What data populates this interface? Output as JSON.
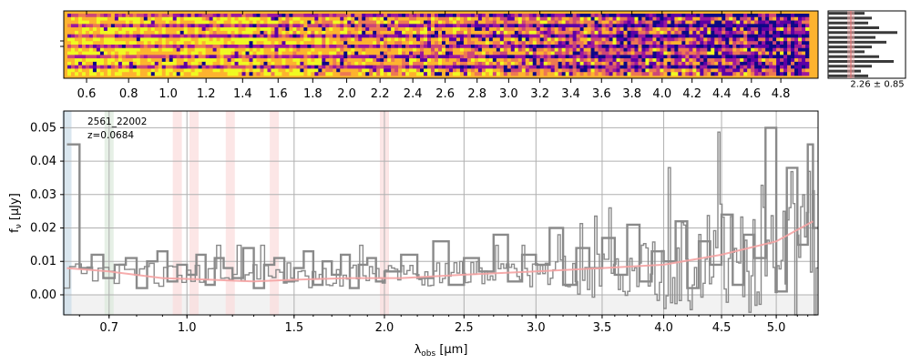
{
  "object_id": "2561_22002",
  "redshift_label": "z=0.0684",
  "histogram_label": "2.26 ± 0.85",
  "colors": {
    "spectrum": "#8a8a8a",
    "model": "#f5a3a3",
    "grid": "#b0b0b0",
    "error_band": "#e8e8e8",
    "halpha": "#dbeadb",
    "line_marker": "#fbdcdc",
    "blue_marker": "#c9dce8",
    "histogram_peak": "#d62728"
  },
  "chart_data": [
    {
      "type": "heatmap",
      "name": "2d-spectrum",
      "colormap": "plasma",
      "x_tick_labels": [
        "0.6",
        "0.8",
        "1.0",
        "1.2",
        "1.4",
        "1.6",
        "1.8",
        "2.0",
        "2.2",
        "2.4",
        "2.6",
        "2.8",
        "3.0",
        "3.2",
        "3.4",
        "3.6",
        "3.8",
        "4.0",
        "4.2",
        "4.4",
        "4.6",
        "4.8"
      ],
      "x_tick_values": [
        0.6,
        0.8,
        1.0,
        1.2,
        1.4,
        1.6,
        1.8,
        2.0,
        2.2,
        2.4,
        2.6,
        2.8,
        3.0,
        3.2,
        3.4,
        3.6,
        3.8,
        4.0,
        4.2,
        4.4,
        4.6,
        4.8
      ],
      "rows": 18,
      "columns": 204
    },
    {
      "type": "line",
      "name": "1d-spectrum",
      "xlabel": "λ_obs [μm]",
      "ylabel": "f_ν [μJy]",
      "xscale": "sqrt-like",
      "xlim": [
        0.55,
        5.4
      ],
      "ylim": [
        -0.006,
        0.055
      ],
      "grid": true,
      "x_tick_labels": [
        "0.7",
        "1.0",
        "1.5",
        "2.0",
        "2.5",
        "3.0",
        "3.5",
        "4.0",
        "4.5",
        "5.0"
      ],
      "x_tick_values": [
        0.7,
        1.0,
        1.5,
        2.0,
        2.5,
        3.0,
        3.5,
        4.0,
        4.5,
        5.0
      ],
      "y_tick_labels": [
        "0.00",
        "0.01",
        "0.02",
        "0.03",
        "0.04",
        "0.05"
      ],
      "y_tick_values": [
        0.0,
        0.01,
        0.02,
        0.03,
        0.04,
        0.05
      ],
      "line_markers_um": [
        0.56,
        0.7,
        0.96,
        1.03,
        1.19,
        1.4,
        2.0
      ],
      "series": [
        {
          "kind": "step",
          "x": [
            0.56,
            0.6,
            0.64,
            0.68,
            0.72,
            0.76,
            0.8,
            0.84,
            0.88,
            0.92,
            0.96,
            1.0,
            1.04,
            1.08,
            1.12,
            1.16,
            1.2,
            1.25,
            1.3,
            1.35,
            1.4,
            1.45,
            1.5,
            1.55,
            1.6,
            1.65,
            1.7,
            1.75,
            1.8,
            1.85,
            1.9,
            1.95,
            2.0,
            2.1,
            2.2,
            2.3,
            2.4,
            2.5,
            2.6,
            2.7,
            2.8,
            2.9,
            3.0,
            3.1,
            3.2,
            3.3,
            3.4,
            3.5,
            3.6,
            3.7,
            3.8,
            3.9,
            4.0,
            4.1,
            4.2,
            4.3,
            4.4,
            4.5,
            4.6,
            4.7,
            4.8,
            4.9,
            5.0,
            5.1,
            5.2,
            5.3,
            5.35
          ],
          "values": [
            0.045,
            0.008,
            0.012,
            0.005,
            0.009,
            0.011,
            0.002,
            0.01,
            0.013,
            0.004,
            0.009,
            0.006,
            0.012,
            0.003,
            0.011,
            0.008,
            0.005,
            0.014,
            0.002,
            0.009,
            0.011,
            0.004,
            0.008,
            0.013,
            0.003,
            0.01,
            0.006,
            0.012,
            0.002,
            0.009,
            0.011,
            0.004,
            0.007,
            0.012,
            0.005,
            0.016,
            0.003,
            0.011,
            0.007,
            0.018,
            0.004,
            0.012,
            0.009,
            0.02,
            0.003,
            0.014,
            0.008,
            0.017,
            0.006,
            0.021,
            0.004,
            0.013,
            0.01,
            0.022,
            0.002,
            0.016,
            0.009,
            0.024,
            0.003,
            0.018,
            0.011,
            0.05,
            0.001,
            0.038,
            0.015,
            0.045,
            0.02
          ]
        },
        {
          "kind": "model",
          "x": [
            0.56,
            0.7,
            0.9,
            1.1,
            1.3,
            1.5,
            1.8,
            2.1,
            2.5,
            3.0,
            3.5,
            4.0,
            4.5,
            5.0,
            5.35
          ],
          "values": [
            0.008,
            0.007,
            0.005,
            0.0045,
            0.004,
            0.0045,
            0.005,
            0.005,
            0.006,
            0.007,
            0.008,
            0.009,
            0.012,
            0.016,
            0.022
          ]
        }
      ]
    },
    {
      "type": "bar",
      "name": "profile-histogram",
      "orientation": "horizontal",
      "values": [
        0.5,
        0.6,
        0.55,
        0.7,
        0.95,
        0.65,
        0.8,
        0.6,
        0.5,
        0.7,
        0.9,
        0.6,
        0.45,
        0.55
      ]
    }
  ]
}
